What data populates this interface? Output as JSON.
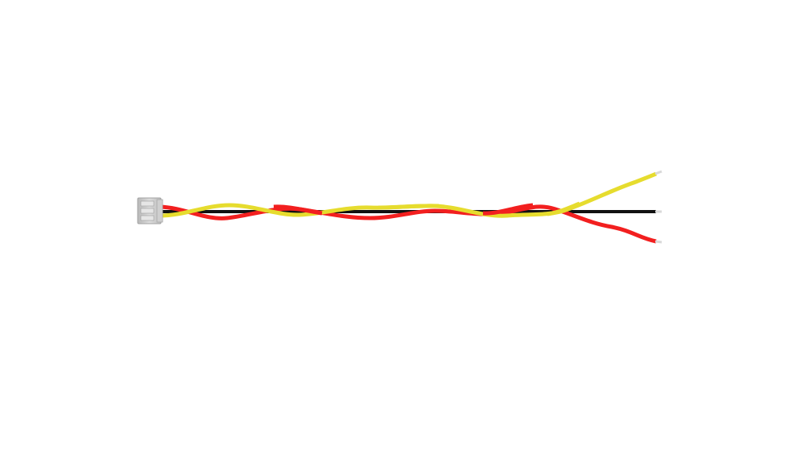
{
  "scene": {
    "subject": "three-wire-cable-assembly",
    "connector": {
      "icon": "connector-housing-icon",
      "color": "#c9c9c9",
      "pin_count": 3
    },
    "wires": [
      {
        "name": "yellow-wire",
        "color": "#e6dc2e"
      },
      {
        "name": "black-wire",
        "color": "#111111"
      },
      {
        "name": "red-wire",
        "color": "#f21f1f"
      }
    ],
    "stripped_end_color": "#d9d9d9",
    "background_color": "#ffffff"
  }
}
